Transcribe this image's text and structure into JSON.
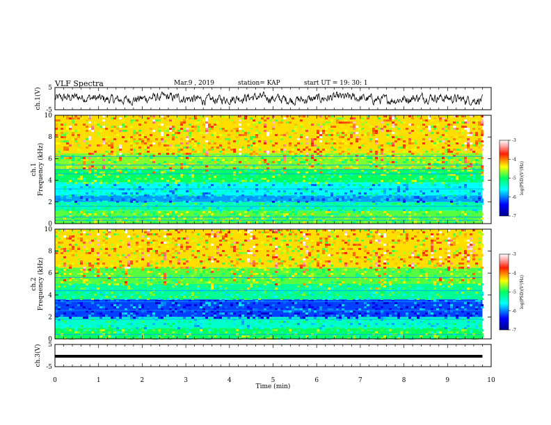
{
  "header": {
    "title": "VLF Spectra",
    "date": "Mar.9  , 2019",
    "station": "station= KAP",
    "start": "start  UT  =   19: 30: 1"
  },
  "chart_data": [
    {
      "type": "line",
      "id": "ch1-waveform",
      "ylabel": "ch.1(V)",
      "ylim": [
        -5,
        5
      ],
      "yticks": [
        "5",
        "-5"
      ],
      "xlim": [
        0,
        10
      ],
      "x_range_data": [
        0,
        9.8
      ],
      "description_values": {
        "typical_min": -2.5,
        "typical_max": 2.5
      },
      "color": "#000000"
    },
    {
      "type": "heatmap",
      "id": "ch1-spectrogram",
      "ylabel": "ch.1\nFrequency  (kHz)",
      "ylabel_line1": "ch.1",
      "ylabel_line2": "Frequency  (kHz)",
      "ylim": [
        0,
        10
      ],
      "yticks": [
        "0",
        "2",
        "4",
        "6",
        "8",
        "10"
      ],
      "xlim": [
        0,
        10
      ],
      "x_range_data": [
        0,
        9.8
      ],
      "colorbar": {
        "label": "log(PSD)(V²/Hz)",
        "range": [
          -7,
          -3
        ],
        "ticks": [
          "-3",
          "-4",
          "-5",
          "-6",
          "-7"
        ]
      },
      "bands_khz": [
        {
          "from": 0,
          "to": 1.2,
          "level": -4.8
        },
        {
          "from": 1.2,
          "to": 2.0,
          "level": -5.3
        },
        {
          "from": 2.0,
          "to": 2.6,
          "level": -5.9
        },
        {
          "from": 2.6,
          "to": 3.8,
          "level": -5.6
        },
        {
          "from": 3.8,
          "to": 5.0,
          "level": -5.0
        },
        {
          "from": 5.0,
          "to": 6.5,
          "level": -4.7
        },
        {
          "from": 6.5,
          "to": 10.0,
          "level": -4.3
        }
      ],
      "line_levels_khz": [
        0.3,
        0.6,
        1.6,
        2.2,
        2.4,
        3.2,
        4.6,
        5.0,
        5.4,
        6.2
      ]
    },
    {
      "type": "heatmap",
      "id": "ch2-spectrogram",
      "ylabel": "ch.2\nFrequency  (kHz)",
      "ylabel_line1": "ch.2",
      "ylabel_line2": "Frequency  (kHz)",
      "ylim": [
        0,
        10
      ],
      "yticks": [
        "0",
        "2",
        "4",
        "6",
        "8",
        "10"
      ],
      "xlim": [
        0,
        10
      ],
      "x_range_data": [
        0,
        9.8
      ],
      "colorbar": {
        "label": "log(PSD)(V²/Hz)",
        "range": [
          -7,
          -3
        ],
        "ticks": [
          "-3",
          "-4",
          "-5",
          "-6",
          "-7"
        ]
      },
      "bands_khz": [
        {
          "from": 0,
          "to": 1.0,
          "level": -5.0
        },
        {
          "from": 1.0,
          "to": 2.0,
          "level": -5.4
        },
        {
          "from": 2.0,
          "to": 3.6,
          "level": -6.2
        },
        {
          "from": 3.6,
          "to": 5.0,
          "level": -5.2
        },
        {
          "from": 5.0,
          "to": 6.5,
          "level": -4.8
        },
        {
          "from": 6.5,
          "to": 10.0,
          "level": -4.3
        }
      ],
      "line_levels_khz": [
        0.4,
        1.8,
        2.6,
        3.4,
        4.4,
        5.6
      ]
    },
    {
      "type": "line",
      "id": "ch3-waveform",
      "ylabel": "ch.3(V)",
      "ylim": [
        -5,
        5
      ],
      "yticks": [
        "5",
        "-5"
      ],
      "xlim": [
        0,
        10
      ],
      "x_range_data": [
        0,
        9.8
      ],
      "constant_value": -0.3,
      "color": "#000000"
    }
  ],
  "xaxis": {
    "label": "Time  (min)",
    "ticks": [
      "0",
      "1",
      "2",
      "3",
      "4",
      "5",
      "6",
      "7",
      "8",
      "9",
      "10"
    ]
  }
}
